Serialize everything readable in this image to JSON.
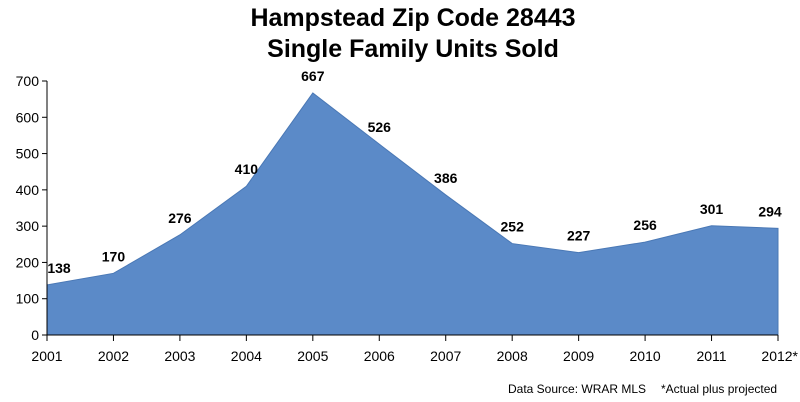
{
  "chart_data": {
    "type": "area",
    "title_lines": [
      "Hampstead Zip Code 28443",
      "Single Family Units Sold"
    ],
    "xlabel": "",
    "ylabel": "",
    "categories": [
      "2001",
      "2002",
      "2003",
      "2004",
      "2005",
      "2006",
      "2007",
      "2008",
      "2009",
      "2010",
      "2011",
      "2012*"
    ],
    "values": [
      138,
      170,
      276,
      410,
      667,
      526,
      386,
      252,
      227,
      256,
      301,
      294
    ],
    "ylim": [
      0,
      700
    ],
    "yticks": [
      "0",
      "100",
      "200",
      "300",
      "400",
      "500",
      "600",
      "700"
    ],
    "grid": false,
    "legend": "none",
    "fill_color": "#5b8ac8",
    "source_note": "Data Source: WRAR MLS",
    "footnote": "*Actual plus projected"
  }
}
